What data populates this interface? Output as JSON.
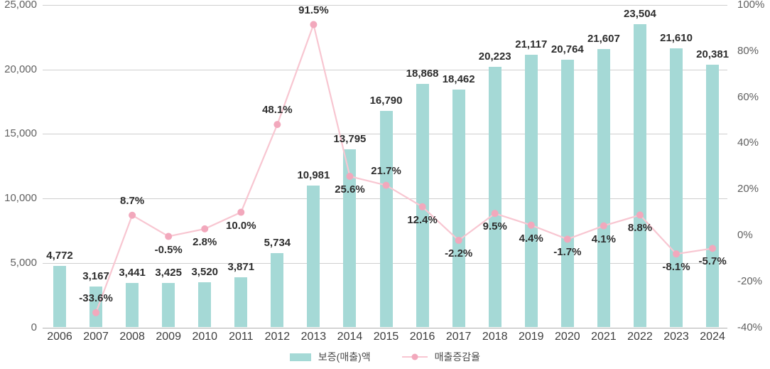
{
  "chart_data": {
    "type": "bar+line",
    "title": "",
    "categories": [
      "2006",
      "2007",
      "2008",
      "2009",
      "2010",
      "2011",
      "2012",
      "2013",
      "2014",
      "2015",
      "2016",
      "2017",
      "2018",
      "2019",
      "2020",
      "2021",
      "2022",
      "2023",
      "2024"
    ],
    "series": [
      {
        "name": "보증(매출)액",
        "type": "bar",
        "axis": "left",
        "values": [
          4772,
          3167,
          3441,
          3425,
          3520,
          3871,
          5734,
          10981,
          13795,
          16790,
          18868,
          18462,
          20223,
          21117,
          20764,
          21607,
          23504,
          21610,
          20381
        ],
        "labels": [
          "4,772",
          "3,167",
          "3,441",
          "3,425",
          "3,520",
          "3,871",
          "5,734",
          "10,981",
          "13,795",
          "16,790",
          "18,868",
          "18,462",
          "20,223",
          "21,117",
          "20,764",
          "21,607",
          "23,504",
          "21,610",
          "20,381"
        ]
      },
      {
        "name": "매출증감율",
        "type": "line",
        "axis": "right",
        "values": [
          null,
          -33.6,
          8.7,
          -0.5,
          2.8,
          10.0,
          48.1,
          91.5,
          25.6,
          21.7,
          12.4,
          -2.2,
          9.5,
          4.4,
          -1.7,
          4.1,
          8.8,
          -8.1,
          -5.7
        ],
        "labels": [
          null,
          "-33.6%",
          "8.7%",
          "-0.5%",
          "2.8%",
          "10.0%",
          "48.1%",
          "91.5%",
          "25.6%",
          "21.7%",
          "12.4%",
          "-2.2%",
          "9.5%",
          "4.4%",
          "-1.7%",
          "4.1%",
          "8.8%",
          "-8.1%",
          "-5.7%"
        ],
        "label_placement": [
          null,
          "above",
          "above",
          "below",
          "below",
          "below",
          "above",
          "above",
          "below",
          "above",
          "below",
          "below",
          "below",
          "below",
          "below",
          "below",
          "below",
          "below",
          "below"
        ]
      }
    ],
    "left_axis": {
      "min": 0,
      "max": 25000,
      "tick_values": [
        0,
        5000,
        10000,
        15000,
        20000,
        25000
      ],
      "tick_labels": [
        "0",
        "5,000",
        "10,000",
        "15,000",
        "20,000",
        "25,000"
      ]
    },
    "right_axis": {
      "min": -40,
      "max": 100,
      "tick_values": [
        -40,
        -20,
        0,
        20,
        40,
        60,
        80,
        100
      ],
      "tick_labels": [
        "-40%",
        "-20%",
        "0%",
        "20%",
        "40%",
        "60%",
        "80%",
        "100%"
      ]
    },
    "legend_position": "bottom-center",
    "grid": "horizontal",
    "colors": {
      "bar": "#a5d9d6",
      "line": "#f8c6d1",
      "marker": "#f2a8bc",
      "value_label": "#2d2d2d",
      "axis_text": "#616161",
      "grid_line": "#cfcfcf",
      "base_line": "#b0b0b0"
    }
  }
}
